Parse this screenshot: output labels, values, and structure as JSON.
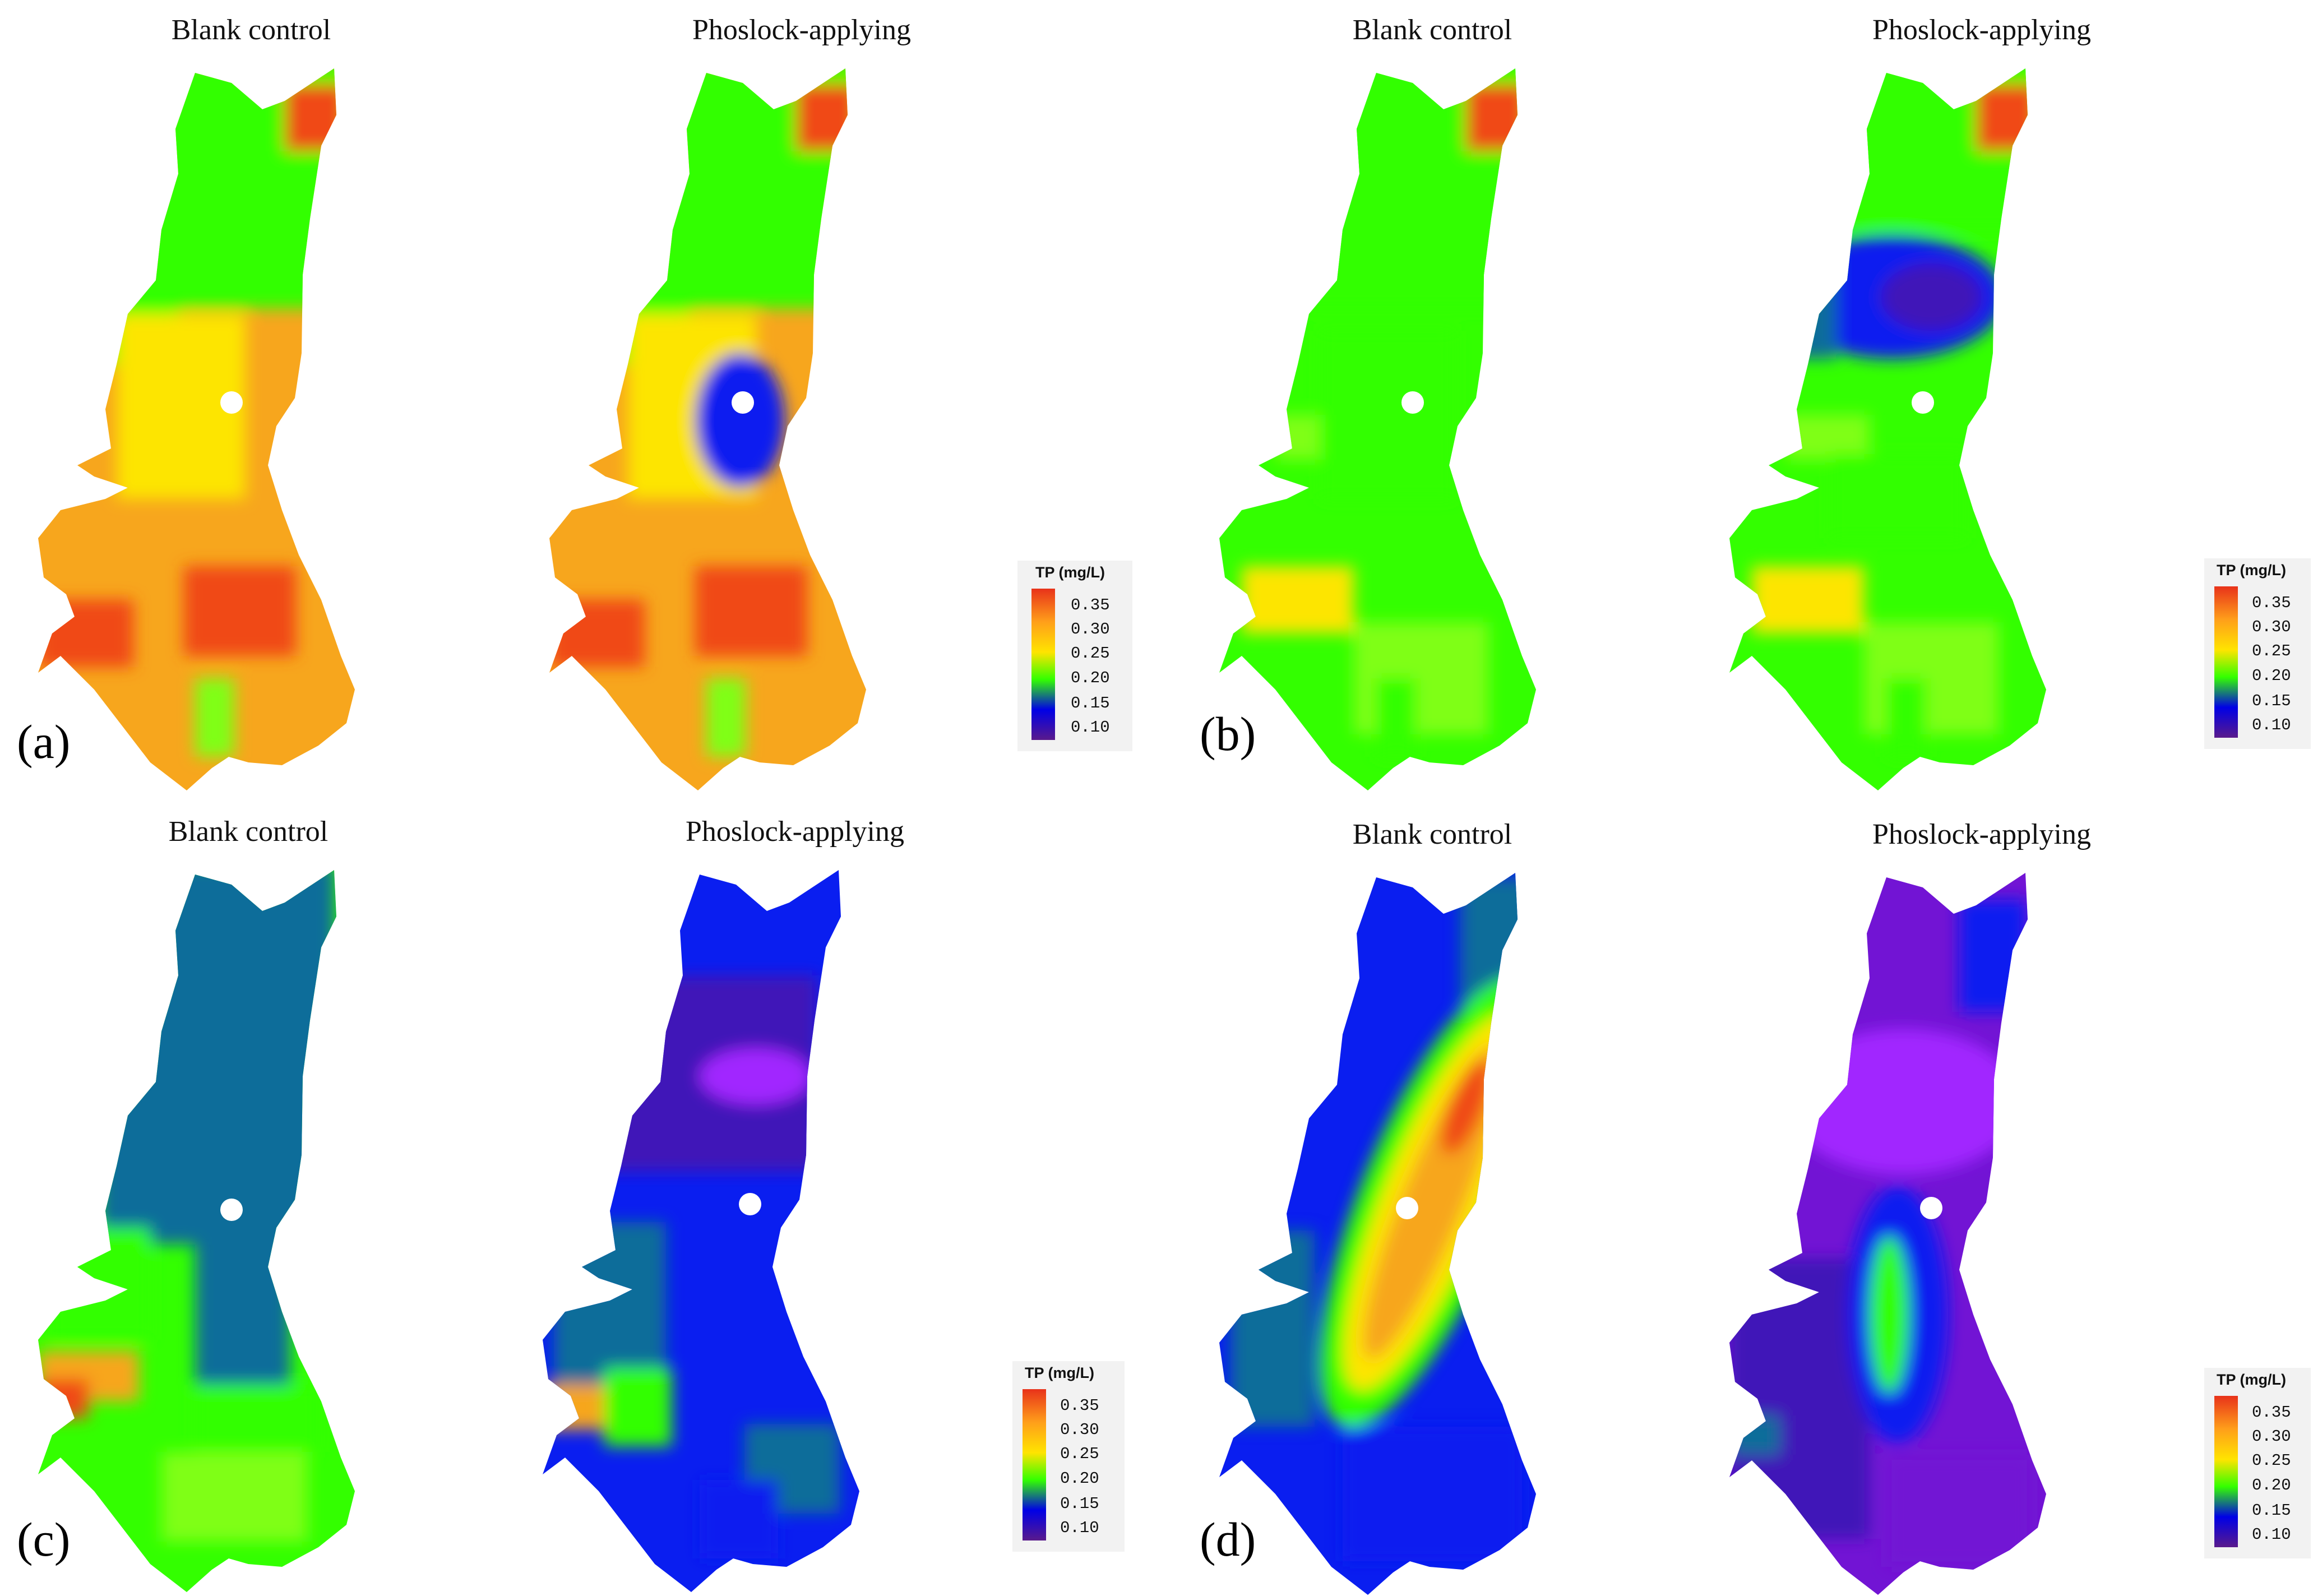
{
  "colors": {
    "stops": [
      "#e8321a",
      "#ff9f1a",
      "#ffe400",
      "#33ff00",
      "#0000e6",
      "#5a1a8c"
    ],
    "map_palette": {
      "red": "#f04a18",
      "orange": "#f7a61d",
      "yellow": "#fde500",
      "lime": "#7fff14",
      "green": "#33ff00",
      "teal": "#0d6d9a",
      "blue": "#0a1ef0",
      "indigo": "#4012b8",
      "purple": "#7214d4",
      "violet": "#a127ff"
    }
  },
  "legend": {
    "title": "TP (mg/L)",
    "ticks": [
      "0.35",
      "0.30",
      "0.25",
      "0.20",
      "0.15",
      "0.10"
    ]
  },
  "panels": [
    {
      "letter": "(a)",
      "maps": [
        {
          "title": "Blank control",
          "base": "orange",
          "zones": [
            "green",
            "green",
            "yellow",
            "red",
            "red",
            "red",
            "lime"
          ]
        },
        {
          "title": "Phoslock-applying",
          "base": "orange",
          "zones": [
            "green",
            "green",
            "yellow",
            "red",
            "red",
            "red",
            "lime"
          ],
          "extra": [
            "blue"
          ]
        }
      ]
    },
    {
      "letter": "(b)",
      "maps": [
        {
          "title": "Blank control",
          "base": "green",
          "zones": [
            "green",
            "lime",
            "yellow",
            "red",
            "green",
            "lime",
            "green"
          ]
        },
        {
          "title": "Phoslock-applying",
          "base": "green",
          "zones": [
            "green",
            "lime",
            "yellow",
            "red",
            "green",
            "lime",
            "green"
          ],
          "extra": [
            "blue",
            "indigo",
            "teal"
          ]
        }
      ]
    },
    {
      "letter": "(c)",
      "maps": [
        {
          "title": "Blank control",
          "base": "green",
          "zones": [
            "teal",
            "teal",
            "orange",
            "red",
            "green",
            "lime",
            "green"
          ]
        },
        {
          "title": "Phoslock-applying",
          "base": "blue",
          "zones": [
            "indigo",
            "violet",
            "teal",
            "orange",
            "green",
            "teal",
            "blue"
          ]
        }
      ]
    },
    {
      "letter": "(d)",
      "maps": [
        {
          "title": "Blank control",
          "base": "blue",
          "zones": [
            "teal",
            "teal",
            "green",
            "yellow",
            "orange",
            "red",
            "blue"
          ]
        },
        {
          "title": "Phoslock-applying",
          "base": "purple",
          "zones": [
            "blue",
            "violet",
            "indigo",
            "blue",
            "green",
            "teal",
            "purple"
          ]
        }
      ]
    }
  ]
}
